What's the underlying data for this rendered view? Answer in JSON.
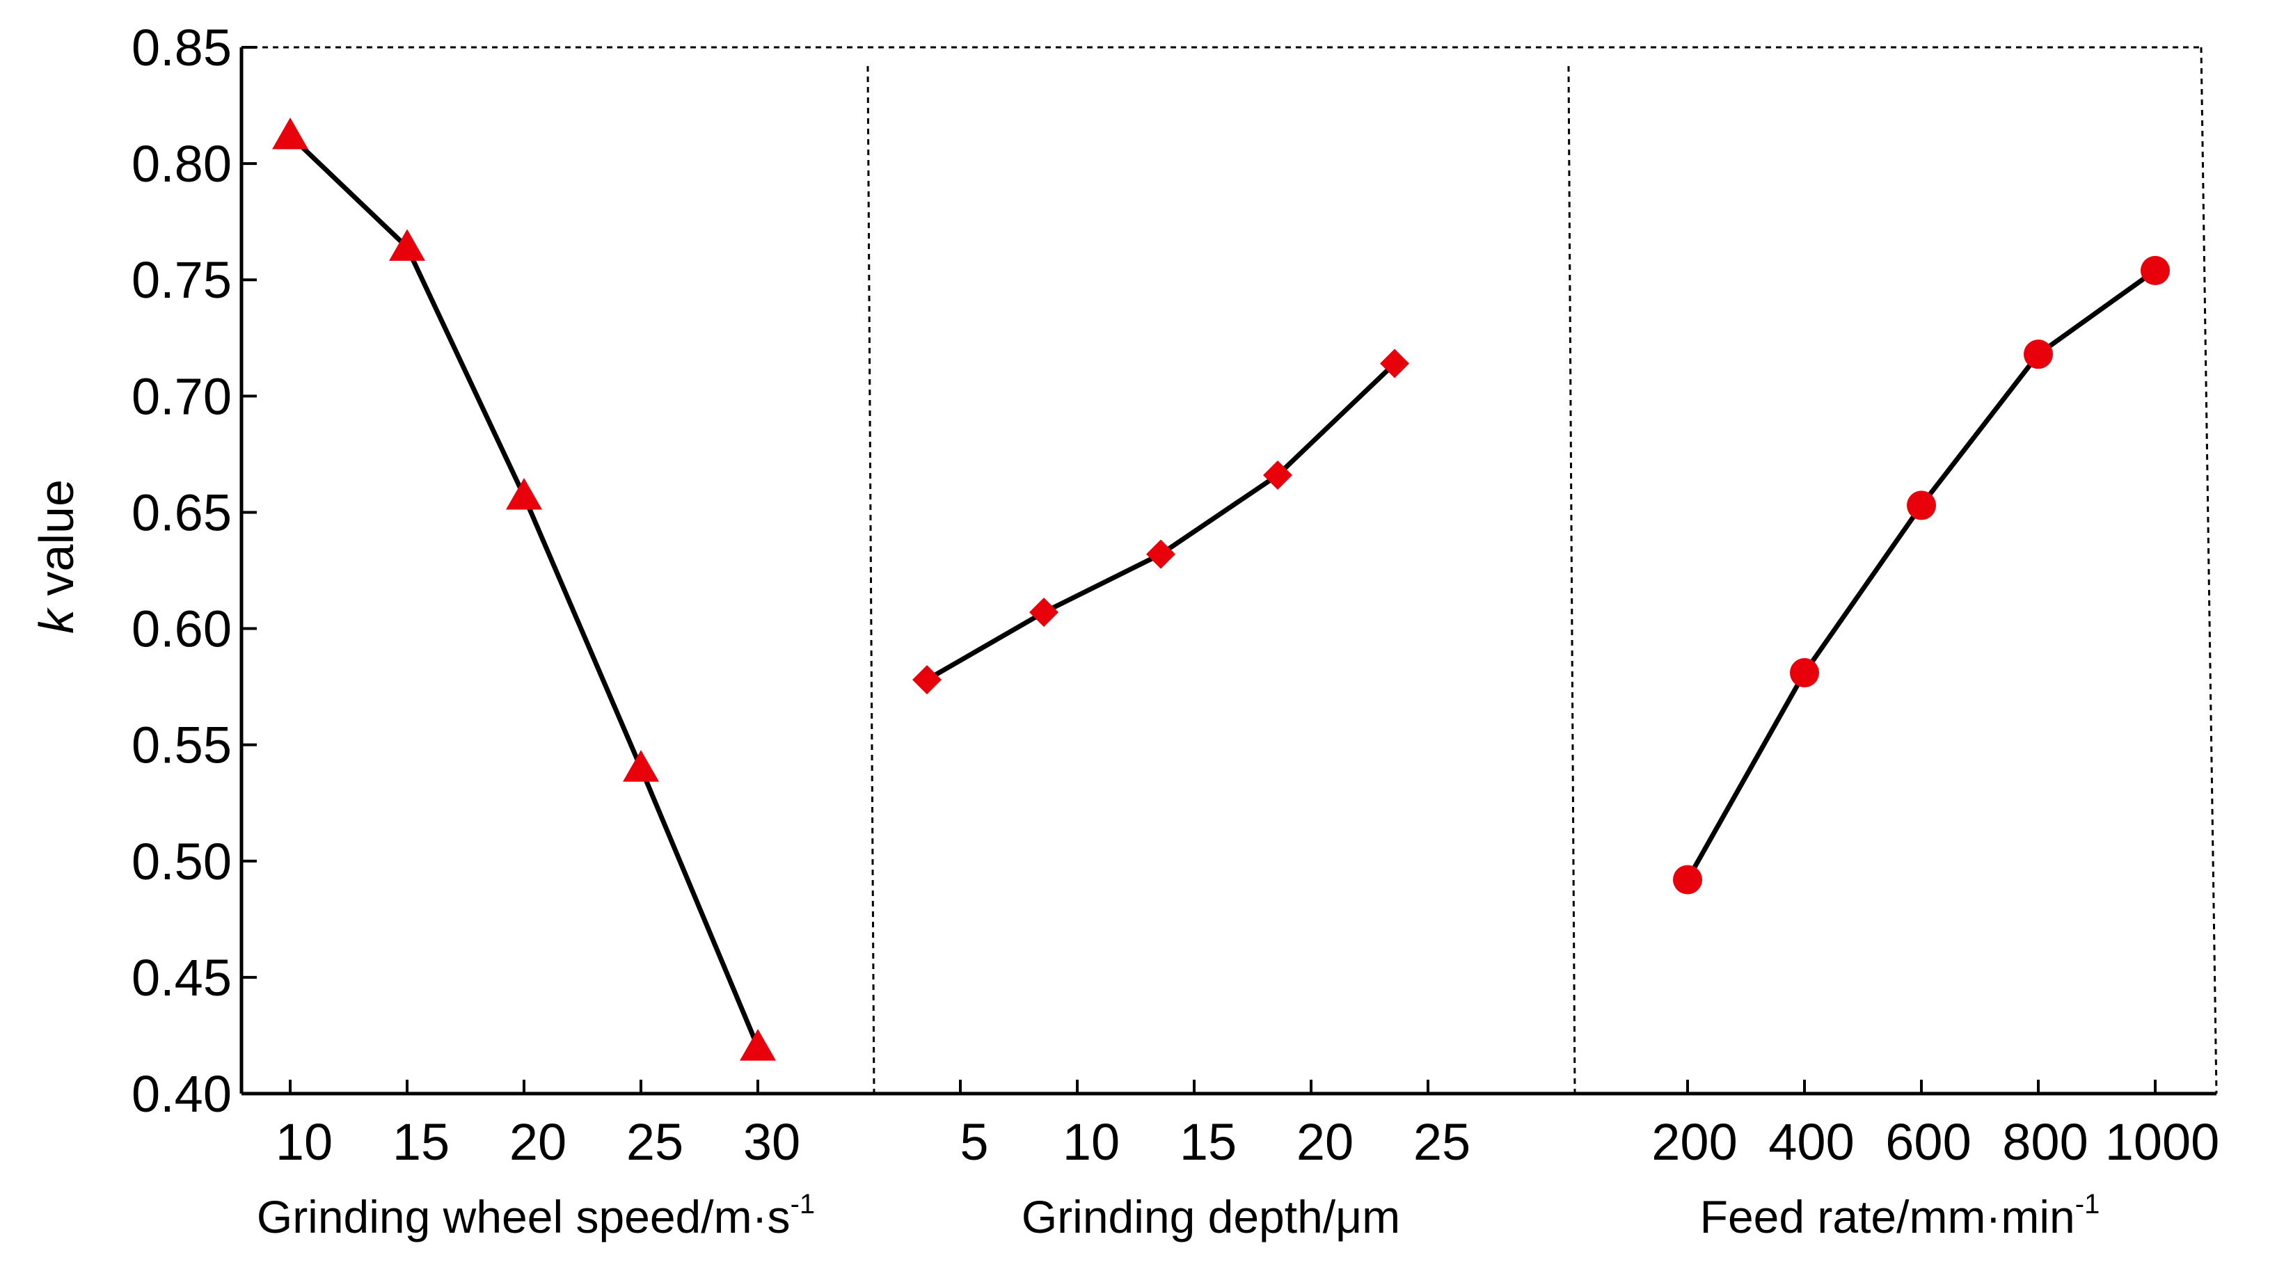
{
  "chart_data": {
    "type": "line",
    "ylabel_italic": "k",
    "ylabel_rest": " value",
    "ylim": [
      0.4,
      0.85
    ],
    "yticks": [
      "0.40",
      "0.45",
      "0.50",
      "0.55",
      "0.60",
      "0.65",
      "0.70",
      "0.75",
      "0.80",
      "0.85"
    ],
    "grid": false,
    "line_color": "#000000",
    "marker_color": "#e8000b",
    "panels": [
      {
        "xlabel_main": "Grinding wheel speed/m·s",
        "xlabel_sup": "-1",
        "xticks": [
          "10",
          "15",
          "20",
          "25",
          "30"
        ],
        "marker": "triangle",
        "x": [
          10,
          15,
          20,
          25,
          30
        ],
        "y": [
          0.812,
          0.764,
          0.657,
          0.54,
          0.42
        ]
      },
      {
        "xlabel_main": "Grinding depth/μm",
        "xlabel_sup": "",
        "xticks": [
          "5",
          "10",
          "15",
          "20",
          "25"
        ],
        "marker": "diamond",
        "x": [
          5,
          10,
          15,
          20,
          25
        ],
        "y": [
          0.578,
          0.607,
          0.632,
          0.666,
          0.714
        ]
      },
      {
        "xlabel_main": "Feed rate/mm·min",
        "xlabel_sup": "-1",
        "xticks": [
          "200",
          "400",
          "600",
          "800",
          "1000"
        ],
        "marker": "circle",
        "x": [
          200,
          400,
          600,
          800,
          1000
        ],
        "y": [
          0.492,
          0.581,
          0.653,
          0.718,
          0.754
        ]
      }
    ]
  }
}
